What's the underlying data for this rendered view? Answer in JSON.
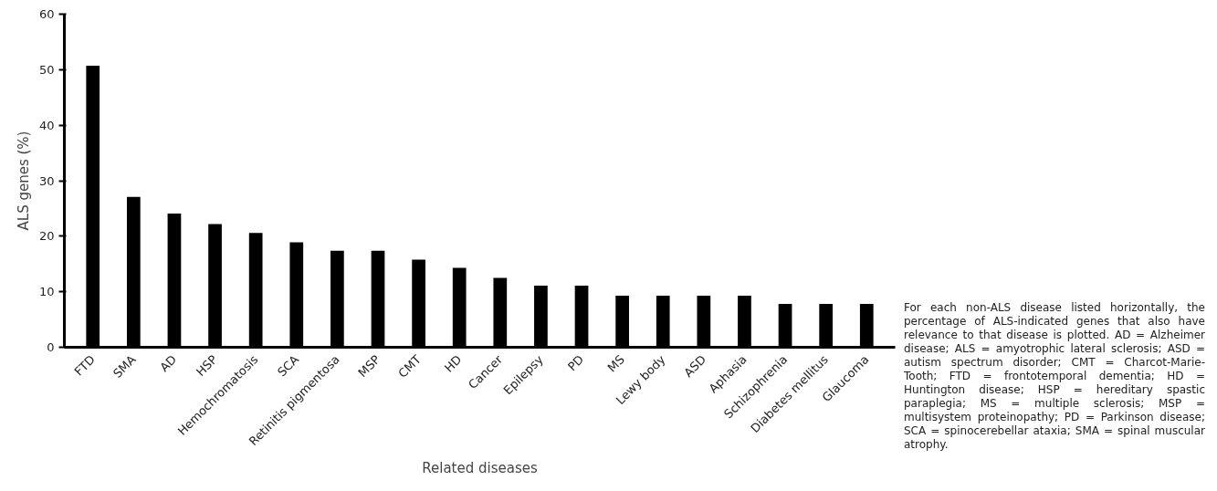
{
  "chart_data": {
    "type": "bar",
    "xlabel": "Related diseases",
    "ylabel": "ALS genes (%)",
    "categories": [
      "FTD",
      "SMA",
      "AD",
      "HSP",
      "Hemochromatosis",
      "SCA",
      "Retinitis pigmentosa",
      "MSP",
      "CMT",
      "HD",
      "Cancer",
      "Epilepsy",
      "PD",
      "MS",
      "Lewy body",
      "ASD",
      "Aphasia",
      "Schizophrenia",
      "Diabetes mellitus",
      "Glaucoma"
    ],
    "values": [
      50.7,
      27.1,
      24.1,
      22.2,
      20.6,
      18.9,
      17.4,
      17.4,
      15.8,
      14.3,
      12.5,
      11.1,
      11.1,
      9.3,
      9.3,
      9.3,
      9.3,
      7.8,
      7.8,
      7.8
    ],
    "color": "#000000",
    "ylim": [
      0,
      60
    ],
    "yticks": [
      0,
      10,
      20,
      30,
      40,
      50,
      60
    ],
    "grid": false,
    "annotations": [
      "For each non-ALS disease listed horizontally, the percentage of ALS-indicated genes that also have relevance to that disease is plotted. AD = Alzheimer disease; ALS = amyotrophic lateral sclerosis; ASD = autism spectrum disorder; CMT = Charcot-Marie-Tooth; FTD = frontotemporal dementia; HD = Huntington disease; HSP = hereditary spastic paraplegia; MS = multiple sclerosis; MSP = multisystem proteinopathy; PD = Parkinson disease; SCA = spinocerebellar ataxia; SMA = spinal muscular atrophy."
    ]
  }
}
